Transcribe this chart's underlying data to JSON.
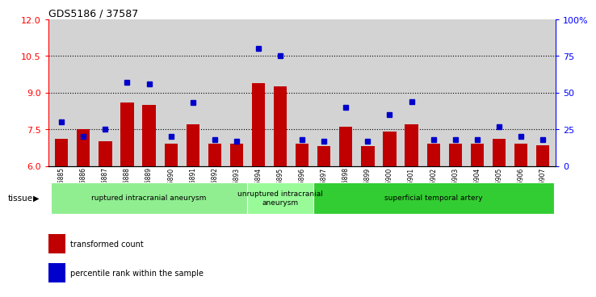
{
  "title": "GDS5186 / 37587",
  "samples": [
    "GSM1306885",
    "GSM1306886",
    "GSM1306887",
    "GSM1306888",
    "GSM1306889",
    "GSM1306890",
    "GSM1306891",
    "GSM1306892",
    "GSM1306893",
    "GSM1306894",
    "GSM1306895",
    "GSM1306896",
    "GSM1306897",
    "GSM1306898",
    "GSM1306899",
    "GSM1306900",
    "GSM1306901",
    "GSM1306902",
    "GSM1306903",
    "GSM1306904",
    "GSM1306905",
    "GSM1306906",
    "GSM1306907"
  ],
  "transformed_count": [
    7.1,
    7.5,
    7.0,
    8.6,
    8.5,
    6.9,
    7.7,
    6.9,
    6.9,
    9.4,
    9.25,
    6.9,
    6.8,
    7.6,
    6.8,
    7.4,
    7.7,
    6.9,
    6.9,
    6.9,
    7.1,
    6.9,
    6.85
  ],
  "percentile_rank": [
    30,
    20,
    25,
    57,
    56,
    20,
    43,
    18,
    17,
    80,
    75,
    18,
    17,
    40,
    17,
    35,
    44,
    18,
    18,
    18,
    27,
    20,
    18
  ],
  "groups": [
    {
      "label": "ruptured intracranial aneurysm",
      "start": 0,
      "end": 9,
      "color": "#90EE90"
    },
    {
      "label": "unruptured intracranial\naneurysm",
      "start": 9,
      "end": 12,
      "color": "#98FB98"
    },
    {
      "label": "superficial temporal artery",
      "start": 12,
      "end": 23,
      "color": "#32CD32"
    }
  ],
  "ylim_left": [
    6,
    12
  ],
  "ylim_right": [
    0,
    100
  ],
  "yticks_left": [
    6,
    7.5,
    9,
    10.5,
    12
  ],
  "yticks_right": [
    0,
    25,
    50,
    75,
    100
  ],
  "ytick_labels_right": [
    "0",
    "25",
    "50",
    "75",
    "100%"
  ],
  "bar_color": "#C00000",
  "dot_color": "#0000CC",
  "bg_color": "#D3D3D3",
  "plot_bg": "#E8E8E8",
  "grid_values": [
    7.5,
    9.0,
    10.5
  ],
  "tissue_label": "tissue",
  "legend_red": "transformed count",
  "legend_blue": "percentile rank within the sample",
  "bar_width": 0.6,
  "baseline": 6.0
}
